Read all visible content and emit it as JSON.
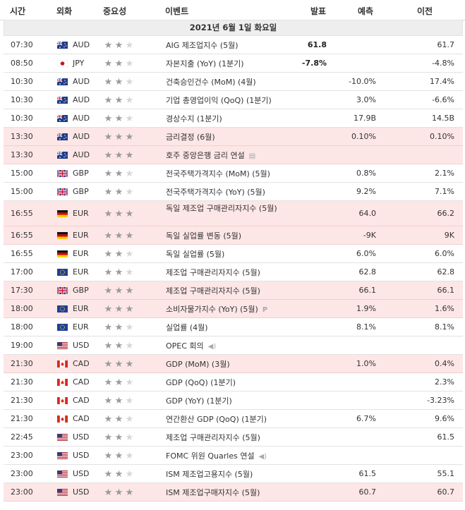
{
  "header": {
    "time": "시간",
    "currency": "외화",
    "importance": "중요성",
    "event": "이벤트",
    "actual": "발표",
    "forecast": "예측",
    "previous": "이전"
  },
  "date_label": "2021년 6월 1일 화요일",
  "colors": {
    "highlight_row": "#fde6e6",
    "star_on": "#9a9a9a",
    "star_off": "#d6d6d6"
  },
  "events": [
    {
      "time": "07:30",
      "flag": "au-flag",
      "cur": "AUD",
      "stars": 2,
      "event": "AIG 제조업지수 (5월)",
      "actual": "61.8",
      "forecast": "",
      "previous": "61.7",
      "hl": false
    },
    {
      "time": "08:50",
      "flag": "jp-flag",
      "cur": "JPY",
      "stars": 2,
      "event": "자본지출 (YoY) (1분기)",
      "actual": "-7.8%",
      "forecast": "",
      "previous": "-4.8%",
      "hl": false
    },
    {
      "time": "10:30",
      "flag": "au-flag",
      "cur": "AUD",
      "stars": 2,
      "event": "건축승인건수 (MoM) (4월)",
      "actual": "",
      "forecast": "-10.0%",
      "previous": "17.4%",
      "hl": false
    },
    {
      "time": "10:30",
      "flag": "au-flag",
      "cur": "AUD",
      "stars": 2,
      "event": "기업 총영업이익 (QoQ) (1분기)",
      "actual": "",
      "forecast": "3.0%",
      "previous": "-6.6%",
      "hl": false
    },
    {
      "time": "10:30",
      "flag": "au-flag",
      "cur": "AUD",
      "stars": 2,
      "event": "경상수지 (1분기)",
      "actual": "",
      "forecast": "17.9B",
      "previous": "14.5B",
      "hl": false
    },
    {
      "time": "13:30",
      "flag": "au-flag",
      "cur": "AUD",
      "stars": 3,
      "event": "금리결정 (6월)",
      "actual": "",
      "forecast": "0.10%",
      "previous": "0.10%",
      "hl": true
    },
    {
      "time": "13:30",
      "flag": "au-flag",
      "cur": "AUD",
      "stars": 3,
      "event": "호주 중앙은행 금리 연설",
      "actual": "",
      "forecast": "",
      "previous": "",
      "hl": true,
      "suffix": "doc-icon"
    },
    {
      "time": "15:00",
      "flag": "gb-flag",
      "cur": "GBP",
      "stars": 2,
      "event": "전국주택가격지수 (MoM) (5월)",
      "actual": "",
      "forecast": "0.8%",
      "previous": "2.1%",
      "hl": false
    },
    {
      "time": "15:00",
      "flag": "gb-flag",
      "cur": "GBP",
      "stars": 2,
      "event": "전국주택가격지수 (YoY) (5월)",
      "actual": "",
      "forecast": "9.2%",
      "previous": "7.1%",
      "hl": false
    },
    {
      "time": "16:55",
      "flag": "de-flag",
      "cur": "EUR",
      "stars": 3,
      "event": "독일 제조업 구매관리자지수 (5월)",
      "actual": "",
      "forecast": "64.0",
      "previous": "66.2",
      "hl": true,
      "tall": true
    },
    {
      "time": "16:55",
      "flag": "de-flag",
      "cur": "EUR",
      "stars": 3,
      "event": "독일 실업률 변동 (5월)",
      "actual": "",
      "forecast": "-9K",
      "previous": "9K",
      "hl": true
    },
    {
      "time": "16:55",
      "flag": "de-flag",
      "cur": "EUR",
      "stars": 2,
      "event": "독일 실업률 (5월)",
      "actual": "",
      "forecast": "6.0%",
      "previous": "6.0%",
      "hl": false
    },
    {
      "time": "17:00",
      "flag": "eu-flag",
      "cur": "EUR",
      "stars": 2,
      "event": "제조업 구매관리자지수 (5월)",
      "actual": "",
      "forecast": "62.8",
      "previous": "62.8",
      "hl": false
    },
    {
      "time": "17:30",
      "flag": "gb-flag",
      "cur": "GBP",
      "stars": 3,
      "event": "제조업 구매관리자지수 (5월)",
      "actual": "",
      "forecast": "66.1",
      "previous": "66.1",
      "hl": true
    },
    {
      "time": "18:00",
      "flag": "eu-flag",
      "cur": "EUR",
      "stars": 3,
      "event": "소비자물가지수 (YoY) (5월)",
      "actual": "",
      "forecast": "1.9%",
      "previous": "1.6%",
      "hl": true,
      "suffix": "p-icon"
    },
    {
      "time": "18:00",
      "flag": "eu-flag",
      "cur": "EUR",
      "stars": 2,
      "event": "실업률 (4월)",
      "actual": "",
      "forecast": "8.1%",
      "previous": "8.1%",
      "hl": false
    },
    {
      "time": "19:00",
      "flag": "us-flag",
      "cur": "USD",
      "stars": 2,
      "event": "OPEC 회의",
      "actual": "",
      "forecast": "",
      "previous": "",
      "hl": false,
      "suffix": "speaker-icon"
    },
    {
      "time": "21:30",
      "flag": "ca-flag",
      "cur": "CAD",
      "stars": 3,
      "event": "GDP (MoM) (3월)",
      "actual": "",
      "forecast": "1.0%",
      "previous": "0.4%",
      "hl": true
    },
    {
      "time": "21:30",
      "flag": "ca-flag",
      "cur": "CAD",
      "stars": 2,
      "event": "GDP (QoQ) (1분기)",
      "actual": "",
      "forecast": "",
      "previous": "2.3%",
      "hl": false
    },
    {
      "time": "21:30",
      "flag": "ca-flag",
      "cur": "CAD",
      "stars": 2,
      "event": "GDP (YoY) (1분기)",
      "actual": "",
      "forecast": "",
      "previous": "-3.23%",
      "hl": false
    },
    {
      "time": "21:30",
      "flag": "ca-flag",
      "cur": "CAD",
      "stars": 2,
      "event": "연간환산 GDP (QoQ) (1분기)",
      "actual": "",
      "forecast": "6.7%",
      "previous": "9.6%",
      "hl": false
    },
    {
      "time": "22:45",
      "flag": "us-flag",
      "cur": "USD",
      "stars": 2,
      "event": "제조업 구매관리자지수 (5월)",
      "actual": "",
      "forecast": "",
      "previous": "61.5",
      "hl": false
    },
    {
      "time": "23:00",
      "flag": "us-flag",
      "cur": "USD",
      "stars": 2,
      "event": "FOMC 위원 Quarles 연설",
      "actual": "",
      "forecast": "",
      "previous": "",
      "hl": false,
      "suffix": "speaker-icon"
    },
    {
      "time": "23:00",
      "flag": "us-flag",
      "cur": "USD",
      "stars": 2,
      "event": "ISM 제조업고용지수 (5월)",
      "actual": "",
      "forecast": "61.5",
      "previous": "55.1",
      "hl": false
    },
    {
      "time": "23:00",
      "flag": "us-flag",
      "cur": "USD",
      "stars": 3,
      "event": "ISM 제조업구매자지수 (5월)",
      "actual": "",
      "forecast": "60.7",
      "previous": "60.7",
      "hl": true
    }
  ]
}
